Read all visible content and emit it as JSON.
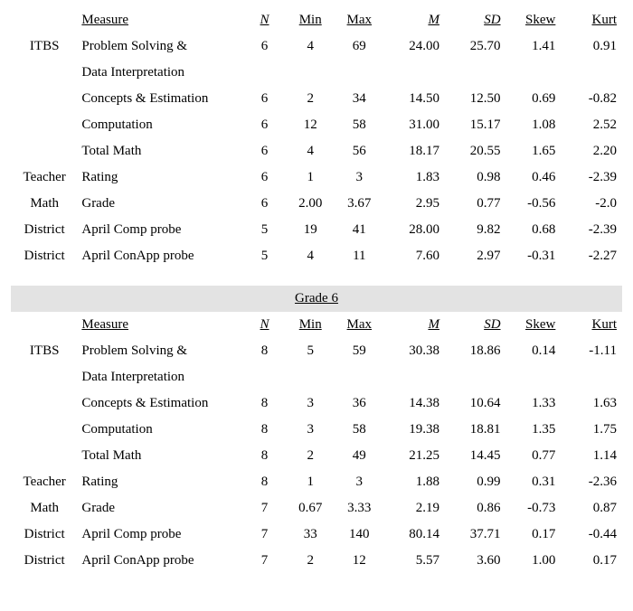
{
  "columns": {
    "measure": "Measure",
    "n": "N",
    "min": "Min",
    "max": "Max",
    "m": "M",
    "sd": "SD",
    "skew": "Skew",
    "kurt": "Kurt"
  },
  "sections": [
    {
      "title": null,
      "rows": [
        {
          "cat": "ITBS",
          "measure": "Problem Solving &",
          "measure2": "Data Interpretation",
          "n": "6",
          "min": "4",
          "max": "69",
          "m": "24.00",
          "sd": "25.70",
          "skew": "1.41",
          "kurt": "0.91"
        },
        {
          "cat": "",
          "measure": "Concepts & Estimation",
          "n": "6",
          "min": "2",
          "max": "34",
          "m": "14.50",
          "sd": "12.50",
          "skew": "0.69",
          "kurt": "-0.82"
        },
        {
          "cat": "",
          "measure": "Computation",
          "n": "6",
          "min": "12",
          "max": "58",
          "m": "31.00",
          "sd": "15.17",
          "skew": "1.08",
          "kurt": "2.52"
        },
        {
          "cat": "",
          "measure": "Total Math",
          "n": "6",
          "min": "4",
          "max": "56",
          "m": "18.17",
          "sd": "20.55",
          "skew": "1.65",
          "kurt": "2.20"
        },
        {
          "cat": "Teacher",
          "measure": "Rating",
          "n": "6",
          "min": "1",
          "max": "3",
          "m": "1.83",
          "sd": "0.98",
          "skew": "0.46",
          "kurt": "-2.39"
        },
        {
          "cat": "Math",
          "measure": "Grade",
          "n": "6",
          "min": "2.00",
          "max": "3.67",
          "m": "2.95",
          "sd": "0.77",
          "skew": "-0.56",
          "kurt": "-2.0"
        },
        {
          "cat": "District",
          "measure": "April Comp probe",
          "n": "5",
          "min": "19",
          "max": "41",
          "m": "28.00",
          "sd": "9.82",
          "skew": "0.68",
          "kurt": "-2.39"
        },
        {
          "cat": "District",
          "measure": "April ConApp probe",
          "n": "5",
          "min": "4",
          "max": "11",
          "m": "7.60",
          "sd": "2.97",
          "skew": "-0.31",
          "kurt": "-2.27"
        }
      ]
    },
    {
      "title": "Grade 6",
      "rows": [
        {
          "cat": "ITBS",
          "measure": "Problem Solving &",
          "measure2": "Data Interpretation",
          "n": "8",
          "min": "5",
          "max": "59",
          "m": "30.38",
          "sd": "18.86",
          "skew": "0.14",
          "kurt": "-1.11"
        },
        {
          "cat": "",
          "measure": "Concepts & Estimation",
          "n": "8",
          "min": "3",
          "max": "36",
          "m": "14.38",
          "sd": "10.64",
          "skew": "1.33",
          "kurt": "1.63"
        },
        {
          "cat": "",
          "measure": "Computation",
          "n": "8",
          "min": "3",
          "max": "58",
          "m": "19.38",
          "sd": "18.81",
          "skew": "1.35",
          "kurt": "1.75"
        },
        {
          "cat": "",
          "measure": "Total Math",
          "n": "8",
          "min": "2",
          "max": "49",
          "m": "21.25",
          "sd": "14.45",
          "skew": "0.77",
          "kurt": "1.14"
        },
        {
          "cat": "Teacher",
          "measure": "Rating",
          "n": "8",
          "min": "1",
          "max": "3",
          "m": "1.88",
          "sd": "0.99",
          "skew": "0.31",
          "kurt": "-2.36"
        },
        {
          "cat": "Math",
          "measure": "Grade",
          "n": "7",
          "min": "0.67",
          "max": "3.33",
          "m": "2.19",
          "sd": "0.86",
          "skew": "-0.73",
          "kurt": "0.87"
        },
        {
          "cat": "District",
          "measure": "April Comp probe",
          "n": "7",
          "min": "33",
          "max": "140",
          "m": "80.14",
          "sd": "37.71",
          "skew": "0.17",
          "kurt": "-0.44"
        },
        {
          "cat": "District",
          "measure": "April ConApp probe",
          "n": "7",
          "min": "2",
          "max": "12",
          "m": "5.57",
          "sd": "3.60",
          "skew": "1.00",
          "kurt": "0.17"
        }
      ]
    }
  ]
}
